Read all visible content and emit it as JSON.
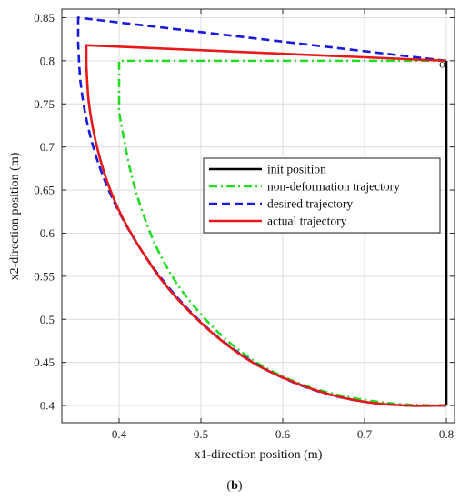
{
  "caption": {
    "open": "(",
    "letter": "b",
    "close": ")"
  },
  "chart_data": {
    "type": "line",
    "xlabel": "x1-direction position (m)",
    "ylabel": "x2-direction position (m)",
    "xlim": [
      0.33,
      0.81
    ],
    "ylim": [
      0.38,
      0.86
    ],
    "xticks": [
      0.4,
      0.5,
      0.6,
      0.7,
      0.8
    ],
    "yticks": [
      0.4,
      0.45,
      0.5,
      0.55,
      0.6,
      0.65,
      0.7,
      0.75,
      0.8,
      0.85
    ],
    "xtick_labels": [
      "0.4",
      "0.5",
      "0.6",
      "0.7",
      "0.8"
    ],
    "ytick_labels": [
      "0.4",
      "0.45",
      "0.5",
      "0.55",
      "0.6",
      "0.65",
      "0.7",
      "0.75",
      "0.8",
      "0.85"
    ],
    "grid": true,
    "legend_position": "center-right",
    "annotations": [
      {
        "text": "o",
        "x": 0.795,
        "y": 0.797
      }
    ],
    "series": [
      {
        "name": "init position",
        "color": "#000000",
        "dash": "solid",
        "x": [
          0.8,
          0.8
        ],
        "y": [
          0.8,
          0.4
        ]
      },
      {
        "name": "non-deformation trajectory",
        "color": "#22dd22",
        "dash": "dashdot",
        "x": [
          0.8,
          0.4,
          0.4,
          0.413,
          0.427,
          0.446,
          0.471,
          0.5,
          0.535,
          0.575,
          0.622,
          0.674,
          0.738,
          0.8
        ],
        "y": [
          0.8,
          0.8,
          0.74,
          0.676,
          0.629,
          0.583,
          0.541,
          0.506,
          0.473,
          0.446,
          0.425,
          0.411,
          0.402,
          0.4
        ]
      },
      {
        "name": "desired trajectory",
        "color": "#1a1add",
        "dash": "dashed",
        "x": [
          0.8,
          0.35,
          0.35,
          0.353,
          0.361,
          0.374,
          0.393,
          0.418,
          0.448,
          0.482,
          0.52,
          0.561,
          0.605,
          0.652,
          0.702,
          0.752,
          0.8
        ],
        "y": [
          0.8,
          0.85,
          0.82,
          0.774,
          0.728,
          0.683,
          0.638,
          0.594,
          0.552,
          0.514,
          0.48,
          0.452,
          0.43,
          0.414,
          0.404,
          0.4,
          0.4
        ]
      },
      {
        "name": "actual trajectory",
        "color": "#e81818",
        "dash": "solid",
        "x": [
          0.8,
          0.36,
          0.36,
          0.363,
          0.371,
          0.384,
          0.402,
          0.426,
          0.454,
          0.487,
          0.523,
          0.563,
          0.606,
          0.653,
          0.702,
          0.752,
          0.8
        ],
        "y": [
          0.8,
          0.818,
          0.795,
          0.752,
          0.708,
          0.664,
          0.622,
          0.582,
          0.543,
          0.508,
          0.477,
          0.45,
          0.43,
          0.414,
          0.404,
          0.4,
          0.4
        ]
      }
    ]
  }
}
